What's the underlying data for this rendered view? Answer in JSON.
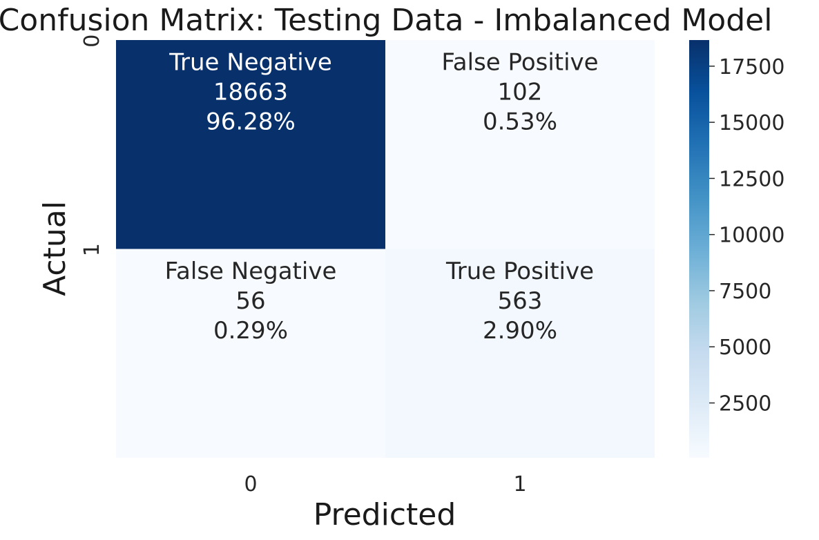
{
  "chart_data": {
    "type": "heatmap",
    "title": "Confusion Matrix: Testing Data - Imbalanced Model",
    "xlabel": "Predicted",
    "ylabel": "Actual",
    "x_categories": [
      "0",
      "1"
    ],
    "y_categories": [
      "0",
      "1"
    ],
    "cells": [
      [
        {
          "label": "True Negative",
          "value": 18663,
          "value_text": "18663",
          "percent_text": "96.28%"
        },
        {
          "label": "False Positive",
          "value": 102,
          "value_text": "102",
          "percent_text": "0.53%"
        }
      ],
      [
        {
          "label": "False Negative",
          "value": 56,
          "value_text": "56",
          "percent_text": "0.29%"
        },
        {
          "label": "True Positive",
          "value": 563,
          "value_text": "563",
          "percent_text": "2.90%"
        }
      ]
    ],
    "colorbar": {
      "colormap": "Blues",
      "range": [
        56,
        18663
      ],
      "ticks": [
        2500,
        5000,
        7500,
        10000,
        12500,
        15000,
        17500
      ],
      "tick_labels": [
        "2500",
        "5000",
        "7500",
        "10000",
        "12500",
        "15000",
        "17500"
      ]
    },
    "grid": false
  }
}
